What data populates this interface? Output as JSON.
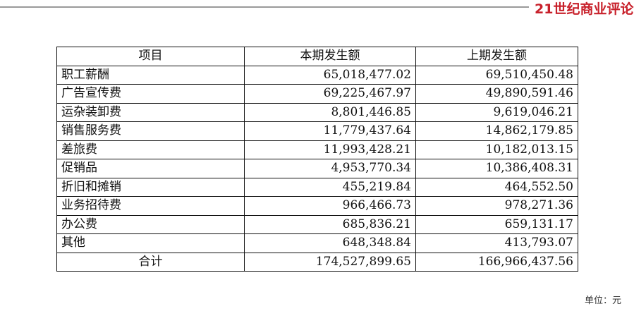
{
  "logo": "21世纪商业评论",
  "headers": [
    "项目",
    "本期发生额",
    "上期发生额"
  ],
  "rows": [
    {
      "item": "职工薪酬",
      "current": "65,018,477.02",
      "previous": "69,510,450.48"
    },
    {
      "item": "广告宣传费",
      "current": "69,225,467.97",
      "previous": "49,890,591.46"
    },
    {
      "item": "运杂装卸费",
      "current": "8,801,446.85",
      "previous": "9,619,046.21"
    },
    {
      "item": "销售服务费",
      "current": "11,779,437.64",
      "previous": "14,862,179.85"
    },
    {
      "item": "差旅费",
      "current": "11,993,428.21",
      "previous": "10,182,013.15"
    },
    {
      "item": "促销品",
      "current": "4,953,770.34",
      "previous": "10,386,408.31"
    },
    {
      "item": "折旧和摊销",
      "current": "455,219.84",
      "previous": "464,552.50"
    },
    {
      "item": "业务招待费",
      "current": "966,466.73",
      "previous": "978,271.36"
    },
    {
      "item": "办公费",
      "current": "685,836.21",
      "previous": "659,131.17"
    },
    {
      "item": "其他",
      "current": "648,348.84",
      "previous": "413,793.07"
    }
  ],
  "total": {
    "item": "合计",
    "current": "174,527,899.65",
    "previous": "166,966,437.56"
  },
  "unit": "单位：元"
}
